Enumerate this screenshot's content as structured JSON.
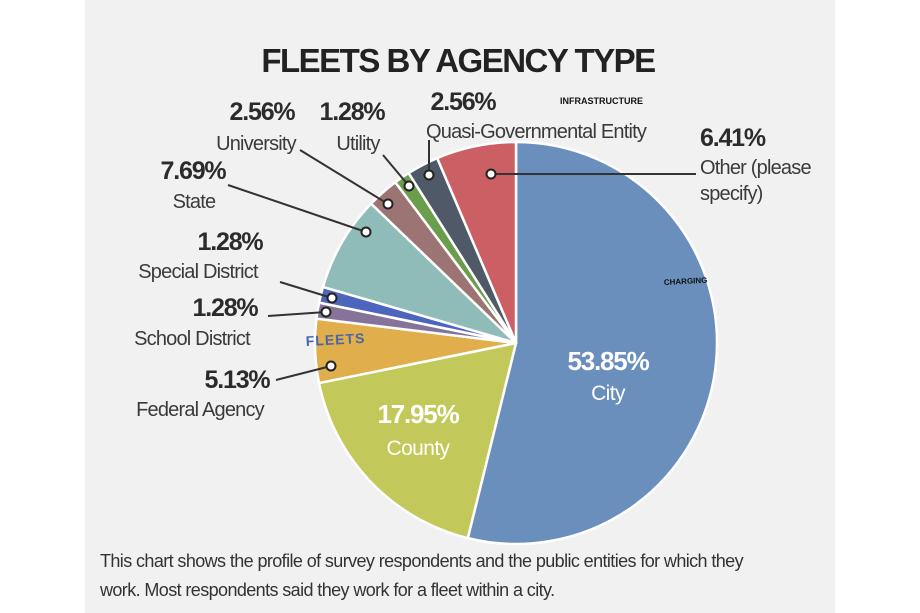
{
  "chart_data": {
    "type": "pie",
    "title": "FLEETS BY AGENCY TYPE",
    "slices": [
      {
        "label": "City",
        "value": 53.85,
        "display": "53.85%",
        "color": "#6a8fbd"
      },
      {
        "label": "County",
        "value": 17.95,
        "display": "17.95%",
        "color": "#c3c85a"
      },
      {
        "label": "Federal Agency",
        "value": 5.13,
        "display": "5.13%",
        "color": "#e0ae4a"
      },
      {
        "label": "School District",
        "value": 1.28,
        "display": "1.28%",
        "color": "#86739a"
      },
      {
        "label": "Special District",
        "value": 1.28,
        "display": "1.28%",
        "color": "#4d66bd"
      },
      {
        "label": "State",
        "value": 7.69,
        "display": "7.69%",
        "color": "#8fbcb8"
      },
      {
        "label": "University",
        "value": 2.56,
        "display": "2.56%",
        "color": "#9c7474"
      },
      {
        "label": "Utility",
        "value": 1.28,
        "display": "1.28%",
        "color": "#6a9d4c"
      },
      {
        "label": "Quasi-Governmental Entity",
        "value": 2.56,
        "display": "2.56%",
        "color": "#4f5968"
      },
      {
        "label": "Other (please specify)",
        "label_lines": [
          "Other (please",
          "specify)"
        ],
        "value": 6.41,
        "display": "6.41%",
        "color": "#cc5f63"
      }
    ],
    "start": "12 o'clock, clockwise"
  },
  "caption": [
    "This chart shows the profile of survey respondents and the public entities for which they",
    "work. Most respondents said they work for a fleet within a city."
  ],
  "overlays": {
    "infrastructure": "INFRASTRUCTURE",
    "charging": "CHARGING",
    "fleets": "FLEETS"
  }
}
